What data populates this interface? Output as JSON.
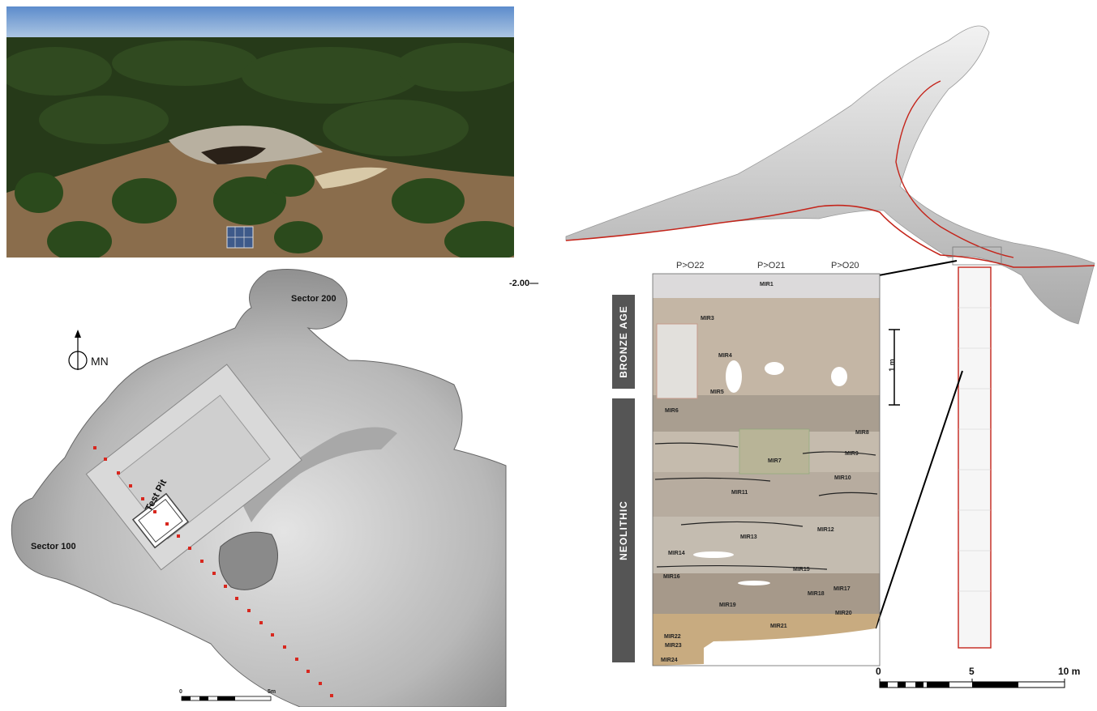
{
  "photo": {
    "alt": ""
  },
  "plan": {
    "sector_200": "Sector 200",
    "sector_100": "Sector 100",
    "test_pit": "Test Pit",
    "north": "MN",
    "scale_left": "0",
    "scale_right": "5m"
  },
  "elevation": "-2.00",
  "section": {
    "columns": [
      "P>O22",
      "P>O21",
      "P>O20"
    ],
    "periods": [
      "BRONZE AGE",
      "NEOLITHIC"
    ],
    "scale_1m": "1 m",
    "layers": [
      "MIR1",
      "MIR3",
      "MIR4",
      "MIR5",
      "MIR6",
      "MIR7",
      "MIR8",
      "MIR9",
      "MIR10",
      "MIR11",
      "MIR12",
      "MIR13",
      "MIR14",
      "MIR15",
      "MIR16",
      "MIR17",
      "MIR18",
      "MIR19",
      "MIR20",
      "MIR21",
      "MIR22",
      "MIR23",
      "MIR24"
    ]
  },
  "scale_bar": {
    "labels": [
      "0",
      "5",
      "10 m"
    ]
  }
}
